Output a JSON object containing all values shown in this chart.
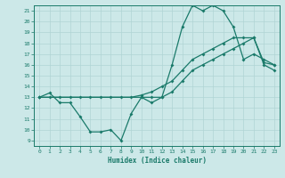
{
  "xlabel": "Humidex (Indice chaleur)",
  "xlim": [
    -0.5,
    23.5
  ],
  "ylim": [
    8.5,
    21.5
  ],
  "xticks": [
    0,
    1,
    2,
    3,
    4,
    5,
    6,
    7,
    8,
    9,
    10,
    11,
    12,
    13,
    14,
    15,
    16,
    17,
    18,
    19,
    20,
    21,
    22,
    23
  ],
  "yticks": [
    9,
    10,
    11,
    12,
    13,
    14,
    15,
    16,
    17,
    18,
    19,
    20,
    21
  ],
  "background_color": "#cce8e8",
  "grid_color": "#b0d4d4",
  "line_color": "#1a7a6a",
  "line1_x": [
    0,
    1,
    2,
    3,
    4,
    5,
    6,
    7,
    8,
    9,
    10,
    11,
    12,
    13,
    14,
    15,
    16,
    17,
    18,
    19,
    20,
    21,
    22,
    23
  ],
  "line1_y": [
    13,
    13.4,
    12.5,
    12.5,
    11.2,
    9.8,
    9.8,
    10.0,
    9.0,
    11.5,
    13.0,
    12.5,
    13.0,
    16.0,
    19.5,
    21.5,
    21.0,
    21.5,
    21.0,
    19.5,
    16.5,
    17.0,
    16.5,
    16.0
  ],
  "line2_x": [
    0,
    1,
    2,
    3,
    4,
    5,
    6,
    7,
    8,
    9,
    10,
    11,
    12,
    13,
    14,
    15,
    16,
    17,
    18,
    19,
    20,
    21,
    22,
    23
  ],
  "line2_y": [
    13,
    13,
    13,
    13,
    13,
    13,
    13,
    13,
    13,
    13,
    13.2,
    13.5,
    14.0,
    14.5,
    15.5,
    16.5,
    17.0,
    17.5,
    18.0,
    18.5,
    18.5,
    18.5,
    16.2,
    16.0
  ],
  "line3_x": [
    0,
    10,
    11,
    12,
    13,
    14,
    15,
    16,
    17,
    18,
    19,
    20,
    21,
    22,
    23
  ],
  "line3_y": [
    13,
    13,
    13,
    13.0,
    13.5,
    14.5,
    15.5,
    16.0,
    16.5,
    17.0,
    17.5,
    18.0,
    18.5,
    16.0,
    15.5
  ]
}
